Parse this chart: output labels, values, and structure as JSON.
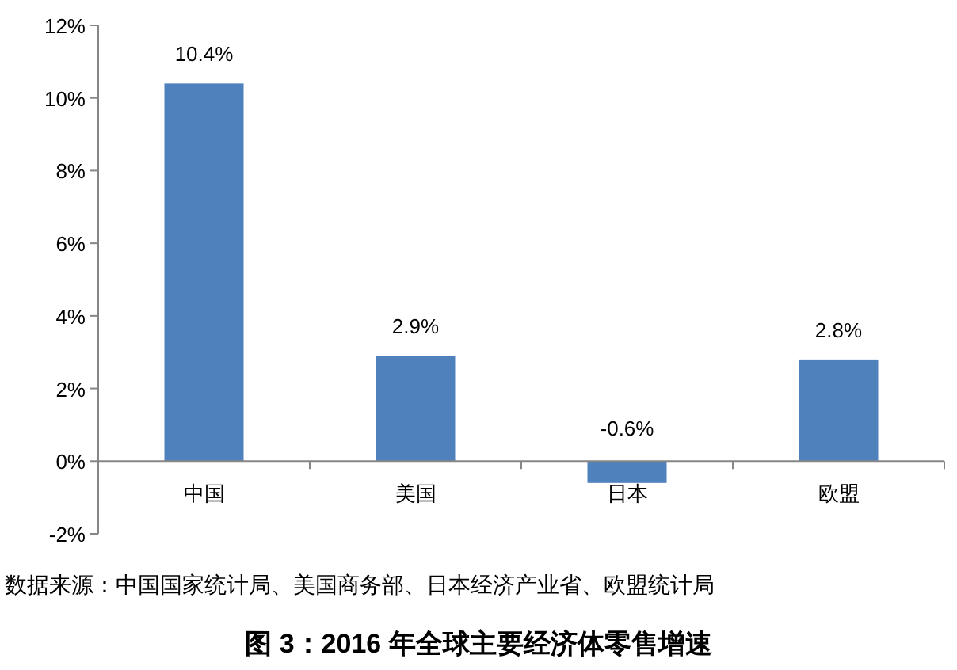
{
  "chart_data": {
    "type": "bar",
    "title": "图 3：2016 年全球主要经济体零售增速",
    "annotations": [
      "数据来源：中国国家统计局、美国商务部、日本经济产业省、欧盟统计局"
    ],
    "categories": [
      "中国",
      "美国",
      "日本",
      "欧盟"
    ],
    "values": [
      10.4,
      2.9,
      -0.6,
      2.8
    ],
    "value_labels": [
      "10.4%",
      "2.9%",
      "-0.6%",
      "2.8%"
    ],
    "color": "#4f81bd",
    "ylim": [
      -2,
      12
    ],
    "yticks": [
      {
        "value": -2,
        "label": "-2%"
      },
      {
        "value": 0,
        "label": "0%"
      },
      {
        "value": 2,
        "label": "2%"
      },
      {
        "value": 4,
        "label": "4%"
      },
      {
        "value": 6,
        "label": "6%"
      },
      {
        "value": 8,
        "label": "8%"
      },
      {
        "value": 10,
        "label": "10%"
      },
      {
        "value": 12,
        "label": "12%"
      }
    ],
    "grid": false
  }
}
